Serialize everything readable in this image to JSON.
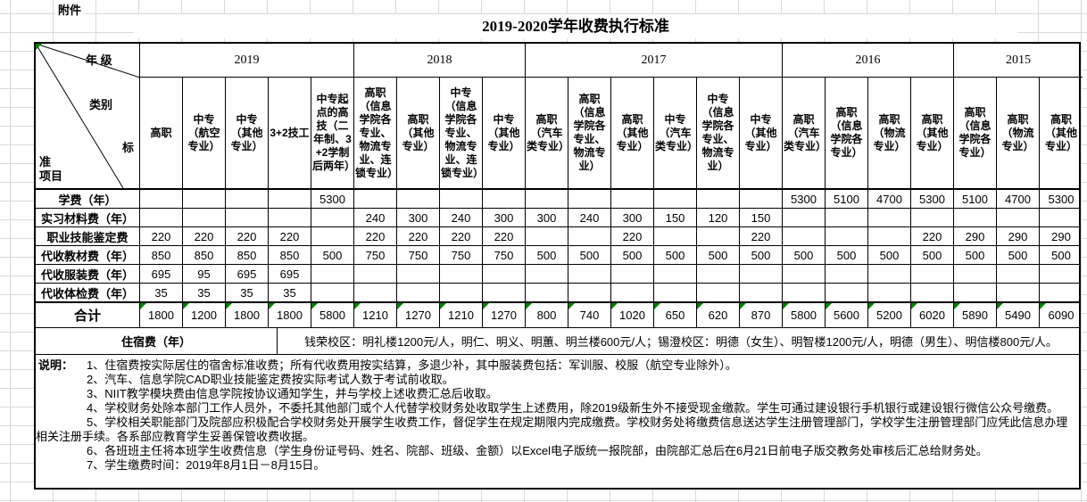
{
  "attachment_label": "附件",
  "title": "2019-2020学年收费执行标准",
  "colors": {
    "flag_green": "#008000",
    "table_border": "#000000",
    "grid_line": "#d9d9d9"
  },
  "corner": {
    "year_label": "年 级",
    "category_label": "类别",
    "std1": "标",
    "std2": "准",
    "std3": "项目"
  },
  "year_groups": [
    {
      "year": "2019",
      "cols": 5
    },
    {
      "year": "2018",
      "cols": 4
    },
    {
      "year": "2017",
      "cols": 6
    },
    {
      "year": "2016",
      "cols": 4
    },
    {
      "year": "2015",
      "cols": 3
    }
  ],
  "columns": [
    "高职",
    "中专（航空专业）",
    "中专（其他专业）",
    "3+2技工",
    "中专起点的高技（二年制、3+2学制后两年）",
    "高职（信息学院各专业、物流专业、连锁专业）",
    "高职（其他专业）",
    "中专（信息学院各专业、物流专业、连锁专业）",
    "中专（其他专业）",
    "高职（汽车类专业）",
    "高职（信息学院各专业、物流专业）",
    "高职（其他专业）",
    "中专（汽车类专业）",
    "中专（信息学院各专业、物流专业）",
    "中专（其他专业）",
    "高职（汽车类专业）",
    "高职（信息学院各专业）",
    "高职（物流专业）",
    "高职（其他专业）",
    "高职（信息学院各专业）",
    "高职（物流专业）",
    "高职（其他专业）"
  ],
  "fee_rows": [
    {
      "label": "学费（年）",
      "values": [
        "",
        "",
        "",
        "",
        "5300",
        "",
        "",
        "",
        "",
        "",
        "",
        "",
        "",
        "",
        "",
        "5300",
        "5100",
        "4700",
        "5300",
        "5100",
        "4700",
        "5300"
      ]
    },
    {
      "label": "实习材料费（年）",
      "values": [
        "",
        "",
        "",
        "",
        "",
        "240",
        "300",
        "240",
        "300",
        "300",
        "240",
        "300",
        "150",
        "120",
        "150",
        "",
        "",
        "",
        "",
        "",
        "",
        ""
      ]
    },
    {
      "label": "职业技能鉴定费",
      "values": [
        "220",
        "220",
        "220",
        "220",
        "",
        "220",
        "220",
        "220",
        "220",
        "",
        "",
        "220",
        "",
        "",
        "220",
        "",
        "",
        "",
        "220",
        "290",
        "290",
        "290"
      ]
    },
    {
      "label": "代收教材费（年）",
      "values": [
        "850",
        "850",
        "850",
        "850",
        "500",
        "750",
        "750",
        "750",
        "750",
        "500",
        "500",
        "500",
        "500",
        "500",
        "500",
        "500",
        "500",
        "500",
        "500",
        "500",
        "500",
        "500"
      ]
    },
    {
      "label": "代收服装费（年）",
      "values": [
        "695",
        "95",
        "695",
        "695",
        "",
        "",
        "",
        "",
        "",
        "",
        "",
        "",
        "",
        "",
        "",
        "",
        "",
        "",
        "",
        "",
        "",
        ""
      ]
    },
    {
      "label": "代收体检费（年）",
      "values": [
        "35",
        "35",
        "35",
        "35",
        "",
        "",
        "",
        "",
        "",
        "",
        "",
        "",
        "",
        "",
        "",
        "",
        "",
        "",
        "",
        "",
        "",
        ""
      ]
    }
  ],
  "total_row": {
    "label": "合计",
    "values": [
      "1800",
      "1200",
      "1800",
      "1800",
      "5800",
      "1210",
      "1270",
      "1210",
      "1270",
      "800",
      "740",
      "1020",
      "650",
      "620",
      "870",
      "5800",
      "5600",
      "5200",
      "6020",
      "5890",
      "5490",
      "6090"
    ]
  },
  "dorm_row": {
    "label": "住宿费（年）",
    "text": "钱荣校区：明礼楼1200元/人，明仁、明义、明蕙、明兰楼600元/人；锡澄校区：明德（女生）、明智楼1200元/人，明德（男生）、明信楼800元/人。"
  },
  "notes": {
    "label": "说明：",
    "items": [
      "1、住宿费按实际居住的宿舍标准收费；所有代收费用按实结算，多退少补，其中服装费包括：军训服、校服（航空专业除外）。",
      "2、汽车、信息学院CAD职业技能鉴定费按实际考试人数于考试前收取。",
      "3、NIIT教学模块费由信息学院按协议通知学生，并与学校上述收费汇总后收取。",
      "4、学校财务处除本部门工作人员外，不委托其他部门或个人代替学校财务处收取学生上述费用，除2019级新生外不接受现金缴款。学生可通过建设银行手机银行或建设银行微信公众号缴费。",
      "5、学校相关职能部门及院部应积极配合学校财务处开展学生收费工作，督促学生在规定期限内完成缴费。学校财务处将缴费信息送达学生注册管理部门，学校学生注册管理部门应凭此信息办理相关注册手续。各系部应教育学生妥善保管收费收据。",
      "6、各班班主任将本班学生收费信息（学生身份证号码、姓名、院部、班级、金额）以Excel电子版统一报院部，由院部汇总后在6月21日前电子版交教务处审核后汇总给财务处。",
      "7、学生缴费时间：2019年8月1日－8月15日。"
    ]
  }
}
